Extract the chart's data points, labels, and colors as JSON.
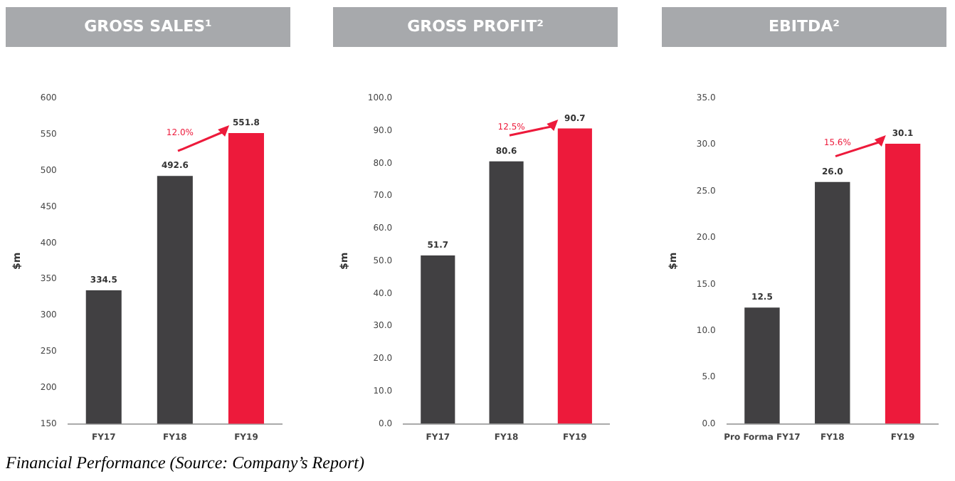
{
  "chart_data": [
    {
      "type": "bar",
      "title": "GROSS SALES¹",
      "ylabel": "$m",
      "categories": [
        "FY17",
        "FY18",
        "FY19"
      ],
      "values": [
        334.5,
        492.6,
        551.8
      ],
      "value_labels": [
        "334.5",
        "492.6",
        "551.8"
      ],
      "colors": [
        "#414042",
        "#414042",
        "#ed1a3b"
      ],
      "ylim": [
        150,
        600
      ],
      "yticks": [
        150,
        200,
        250,
        300,
        350,
        400,
        450,
        500,
        550,
        600
      ],
      "grid": false,
      "legend": false,
      "annotations": [
        "12.0%",
        "Financial Performance (Source: Company’s Report)"
      ]
    },
    {
      "type": "bar",
      "title": "GROSS PROFIT²",
      "ylabel": "$m",
      "categories": [
        "FY17",
        "FY18",
        "FY19"
      ],
      "values": [
        51.7,
        80.6,
        90.7
      ],
      "value_labels": [
        "51.7",
        "80.6",
        "90.7"
      ],
      "colors": [
        "#414042",
        "#414042",
        "#ed1a3b"
      ],
      "ylim": [
        0,
        100
      ],
      "yticks": [
        {
          "value": 0,
          "label": "0.0"
        },
        {
          "value": 10,
          "label": "10.0"
        },
        {
          "value": 20,
          "label": "20.0"
        },
        {
          "value": 30,
          "label": "30.0"
        },
        {
          "value": 40,
          "label": "40.0"
        },
        {
          "value": 50,
          "label": "50.0"
        },
        {
          "value": 60,
          "label": "60.0"
        },
        {
          "value": 70,
          "label": "70.0"
        },
        {
          "value": 80,
          "label": "80.0"
        },
        {
          "value": 90,
          "label": "90.0"
        },
        {
          "value": 100,
          "label": "100.0"
        }
      ],
      "grid": false,
      "legend": false,
      "annotations": [
        "12.5%"
      ]
    },
    {
      "type": "bar",
      "title": "EBITDA²",
      "ylabel": "$m",
      "categories": [
        "Pro Forma FY17",
        "FY18",
        "FY19"
      ],
      "values": [
        12.5,
        26.0,
        30.1
      ],
      "value_labels": [
        "12.5",
        "26.0",
        "30.1"
      ],
      "colors": [
        "#414042",
        "#414042",
        "#ed1a3b"
      ],
      "ylim": [
        0,
        35
      ],
      "yticks": [
        {
          "value": 0,
          "label": "0.0"
        },
        {
          "value": 5,
          "label": "5.0"
        },
        {
          "value": 10,
          "label": "10.0"
        },
        {
          "value": 15,
          "label": "15.0"
        },
        {
          "value": 20,
          "label": "20.0"
        },
        {
          "value": 25,
          "label": "25.0"
        },
        {
          "value": 30,
          "label": "30.0"
        },
        {
          "value": 35,
          "label": "35.0"
        }
      ],
      "grid": false,
      "legend": false,
      "annotations": [
        "15.6%"
      ]
    }
  ]
}
